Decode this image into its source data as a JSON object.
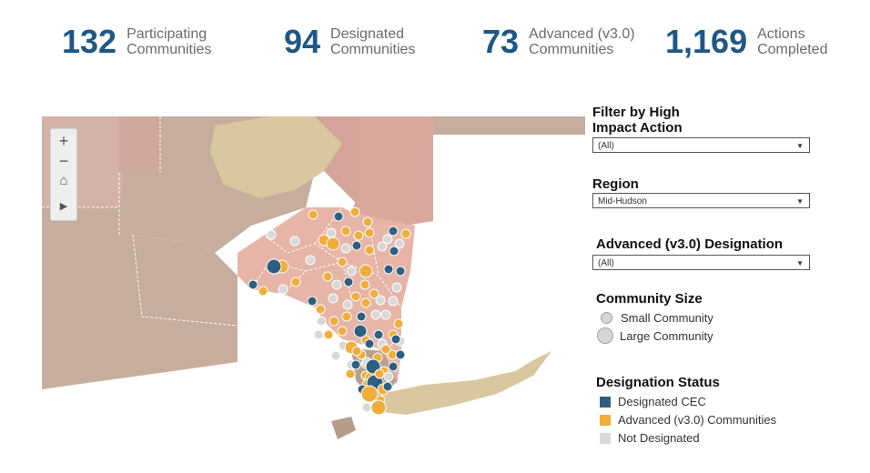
{
  "stats": [
    {
      "value": "132",
      "line1": "Participating",
      "line2": "Communities"
    },
    {
      "value": "94",
      "line1": "Designated",
      "line2": "Communities"
    },
    {
      "value": "73",
      "line1": "Advanced (v3.0)",
      "line2": "Communities"
    },
    {
      "value": "1,169",
      "line1": "Actions",
      "line2": "Completed"
    }
  ],
  "map_controls": {
    "zoom_in": "+",
    "zoom_out": "−",
    "home": "⌂",
    "play": "▶"
  },
  "filters": {
    "high_impact": {
      "title_line1": "Filter by High",
      "title_line2": "Impact Action",
      "value": "(All)"
    },
    "region": {
      "title": "Region",
      "value": "Mid-Hudson"
    },
    "advanced": {
      "title": "Advanced (v3.0) Designation",
      "value": "(All)"
    }
  },
  "size_legend": {
    "title": "Community Size",
    "small": "Small Community",
    "large": "Large Community"
  },
  "status_legend": {
    "title": "Designation Status",
    "items": [
      {
        "label": "Designated CEC",
        "color": "#2f5f80"
      },
      {
        "label": "Advanced (v3.0) Communities",
        "color": "#f0ad3a"
      },
      {
        "label": "Not Designated",
        "color": "#d8d8d8"
      }
    ]
  },
  "colors": {
    "stat_number": "#1f5785",
    "designated": "#2f5f80",
    "advanced": "#f0ad3a",
    "not_designated": "#d8d8d8"
  }
}
